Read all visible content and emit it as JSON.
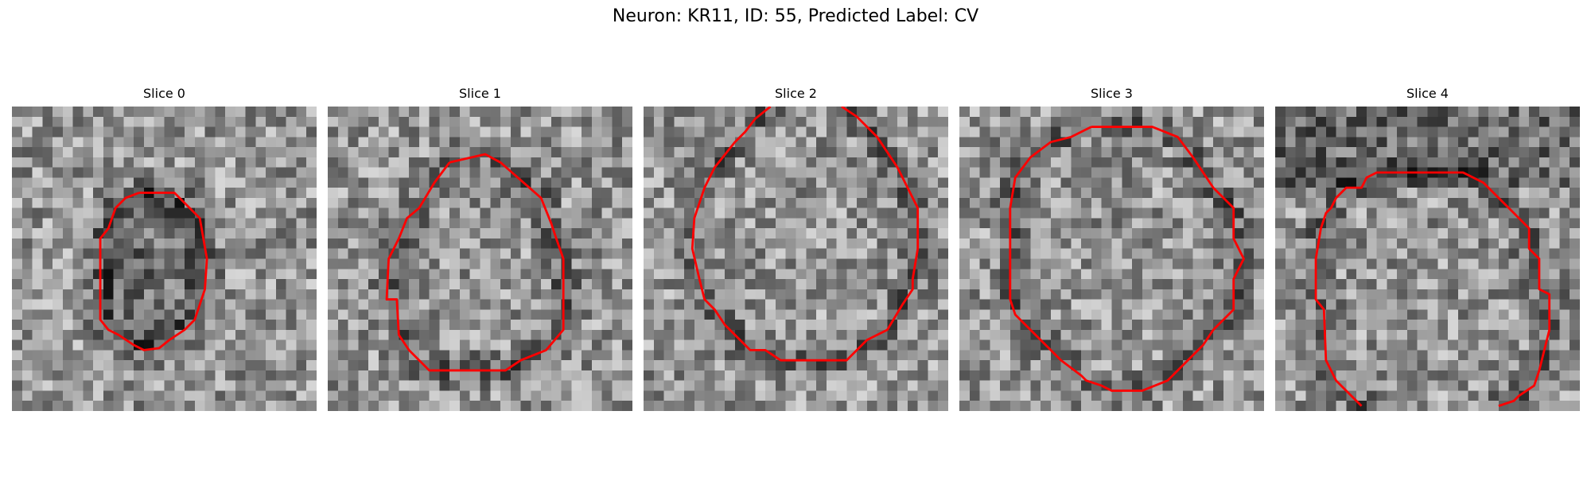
{
  "figure": {
    "title": "Neuron: KR11, ID: 55, Predicted Label: CV",
    "contour_color": "#ff0000",
    "colormap": "grayscale",
    "grid_size": 30
  },
  "slices": [
    {
      "title": "Slice 0",
      "seed": 11,
      "contour": [
        [
          12.5,
          8.5
        ],
        [
          16.0,
          8.5
        ],
        [
          18.5,
          11.0
        ],
        [
          19.2,
          15.0
        ],
        [
          19.0,
          18.0
        ],
        [
          18.0,
          21.0
        ],
        [
          17.0,
          22.0
        ],
        [
          15.5,
          23.0
        ],
        [
          14.5,
          23.8
        ],
        [
          13.0,
          24.0
        ],
        [
          12.0,
          23.5
        ],
        [
          10.5,
          22.5
        ],
        [
          9.5,
          22.0
        ],
        [
          8.7,
          21.0
        ],
        [
          8.7,
          17.0
        ],
        [
          8.7,
          13.0
        ],
        [
          9.5,
          12.0
        ],
        [
          10.2,
          10.0
        ],
        [
          11.2,
          9.0
        ]
      ]
    },
    {
      "title": "Slice 1",
      "seed": 23,
      "contour": [
        [
          12.0,
          5.5
        ],
        [
          15.5,
          4.7
        ],
        [
          17.0,
          5.5
        ],
        [
          21.0,
          9.0
        ],
        [
          22.0,
          11.5
        ],
        [
          22.5,
          13.0
        ],
        [
          23.2,
          15.0
        ],
        [
          23.2,
          19.0
        ],
        [
          23.2,
          22.0
        ],
        [
          21.5,
          24.0
        ],
        [
          19.0,
          25.0
        ],
        [
          17.5,
          26.0
        ],
        [
          14.5,
          26.0
        ],
        [
          10.0,
          26.0
        ],
        [
          8.0,
          24.0
        ],
        [
          7.0,
          22.5
        ],
        [
          6.8,
          19.0
        ],
        [
          5.8,
          19.0
        ],
        [
          6.0,
          15.0
        ],
        [
          7.0,
          13.0
        ],
        [
          7.8,
          11.0
        ],
        [
          9.0,
          10.0
        ],
        [
          10.5,
          7.5
        ]
      ]
    },
    {
      "title": "Slice 2",
      "seed": 37,
      "contour": [
        [
          12.5,
          0.0
        ],
        [
          11.0,
          1.2
        ],
        [
          10.0,
          2.5
        ],
        [
          9.0,
          3.5
        ],
        [
          7.0,
          6.0
        ],
        [
          6.0,
          8.0
        ],
        [
          5.0,
          11.0
        ],
        [
          4.8,
          14.0
        ],
        [
          5.5,
          17.0
        ],
        [
          6.0,
          19.0
        ],
        [
          7.0,
          20.0
        ],
        [
          8.0,
          21.5
        ],
        [
          9.5,
          23.0
        ],
        [
          10.5,
          24.0
        ],
        [
          12.0,
          24.0
        ],
        [
          13.5,
          25.0
        ],
        [
          17.0,
          25.0
        ],
        [
          20.0,
          25.0
        ],
        [
          21.0,
          24.0
        ],
        [
          22.0,
          23.0
        ],
        [
          24.0,
          22.0
        ],
        [
          25.5,
          19.5
        ],
        [
          26.5,
          18.0
        ],
        [
          26.5,
          17.0
        ],
        [
          27.0,
          14.0
        ],
        [
          27.0,
          10.0
        ],
        [
          26.0,
          8.0
        ],
        [
          25.0,
          6.0
        ],
        [
          24.0,
          4.5
        ],
        [
          23.0,
          3.0
        ],
        [
          22.0,
          2.0
        ],
        [
          21.0,
          1.0
        ],
        [
          19.5,
          0.0
        ]
      ]
    },
    {
      "title": "Slice 3",
      "seed": 52,
      "contour": [
        [
          13.0,
          2.0
        ],
        [
          19.0,
          2.0
        ],
        [
          21.5,
          3.0
        ],
        [
          23.0,
          5.0
        ],
        [
          24.0,
          6.5
        ],
        [
          25.0,
          8.0
        ],
        [
          26.0,
          9.0
        ],
        [
          27.0,
          10.0
        ],
        [
          27.0,
          13.0
        ],
        [
          27.5,
          14.0
        ],
        [
          28.0,
          15.0
        ],
        [
          27.5,
          16.0
        ],
        [
          27.0,
          17.0
        ],
        [
          27.0,
          20.0
        ],
        [
          26.0,
          21.0
        ],
        [
          25.0,
          22.0
        ],
        [
          24.0,
          23.5
        ],
        [
          22.5,
          25.0
        ],
        [
          20.5,
          27.0
        ],
        [
          18.0,
          28.0
        ],
        [
          15.0,
          28.0
        ],
        [
          14.0,
          27.5
        ],
        [
          12.5,
          27.0
        ],
        [
          12.0,
          26.5
        ],
        [
          10.0,
          25.0
        ],
        [
          9.0,
          24.0
        ],
        [
          7.0,
          22.0
        ],
        [
          5.5,
          20.5
        ],
        [
          5.0,
          19.0
        ],
        [
          5.0,
          15.0
        ],
        [
          5.0,
          10.0
        ],
        [
          5.5,
          7.0
        ],
        [
          7.0,
          5.0
        ],
        [
          9.0,
          3.5
        ],
        [
          11.0,
          3.0
        ]
      ]
    },
    {
      "title": "Slice 4",
      "seed": 68,
      "contour": [
        [
          8.5,
          29.5
        ],
        [
          7.5,
          28.5
        ],
        [
          6.0,
          27.0
        ],
        [
          5.0,
          25.0
        ],
        [
          4.8,
          20.0
        ],
        [
          4.0,
          19.0
        ],
        [
          4.0,
          15.0
        ],
        [
          4.5,
          12.0
        ],
        [
          5.0,
          10.5
        ],
        [
          5.5,
          10.0
        ],
        [
          6.0,
          9.0
        ],
        [
          7.0,
          8.0
        ],
        [
          8.5,
          8.0
        ],
        [
          9.0,
          7.0
        ],
        [
          10.0,
          6.5
        ],
        [
          14.0,
          6.5
        ],
        [
          18.5,
          6.5
        ],
        [
          20.5,
          7.5
        ],
        [
          21.0,
          8.0
        ],
        [
          23.0,
          10.0
        ],
        [
          24.0,
          11.0
        ],
        [
          25.0,
          12.0
        ],
        [
          25.0,
          14.0
        ],
        [
          26.0,
          15.0
        ],
        [
          26.0,
          18.0
        ],
        [
          27.0,
          18.5
        ],
        [
          27.0,
          22.0
        ],
        [
          26.5,
          24.0
        ],
        [
          26.0,
          26.0
        ],
        [
          25.5,
          27.5
        ],
        [
          24.0,
          28.5
        ],
        [
          23.5,
          29.0
        ],
        [
          22.0,
          29.5
        ]
      ]
    }
  ]
}
